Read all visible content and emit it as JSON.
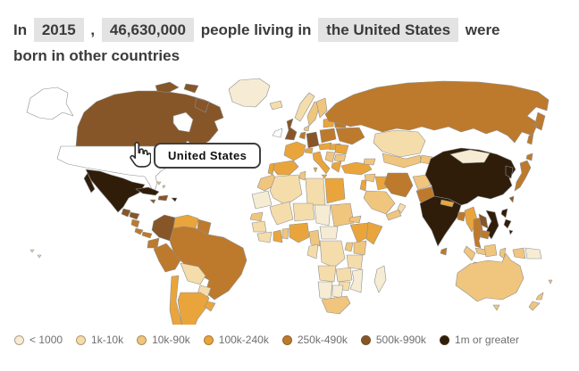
{
  "title": {
    "prefix": "In",
    "year": "2015",
    "separator": ",",
    "count": "46,630,000",
    "mid": "people living in",
    "place": "the United States",
    "suffix": "were",
    "line2": "born in other countries"
  },
  "tooltip": {
    "text": "United States"
  },
  "legend": {
    "items": [
      {
        "label": "< 1000",
        "color": "#f6ecd4"
      },
      {
        "label": "1k-10k",
        "color": "#f5dcab"
      },
      {
        "label": "10k-90k",
        "color": "#f0c57d"
      },
      {
        "label": "100k-240k",
        "color": "#e9a53c"
      },
      {
        "label": "250k-490k",
        "color": "#bd7a2c"
      },
      {
        "label": "500k-990k",
        "color": "#875628"
      },
      {
        "label": "1m or greater",
        "color": "#2f1d0a"
      }
    ]
  },
  "map": {
    "selected_country": "United States",
    "selected_fill": "#ffffff",
    "no_data_fill": "#ffffff",
    "border_color": "#8f8f8f",
    "regions": {
      "greenland": 0,
      "canada": 5,
      "arctic-island-1": 5,
      "arctic-island-2": 5,
      "baffin-island": 5,
      "yukon-island": 5,
      "alaska": "selected",
      "usa": "selected",
      "hudson-bay": "nodata",
      "mexico": 6,
      "guatemala": 5,
      "honduras": 5,
      "nicaragua": 4,
      "costa-rica": 4,
      "panama": 4,
      "cuba": 6,
      "jamaica": 5,
      "hispaniola": 5,
      "puerto-rico": 6,
      "bahamas-1": 2,
      "bahamas-2": 2,
      "colombia": 5,
      "venezuela": 3,
      "guyana": 4,
      "ecuador": 4,
      "peru": 4,
      "brazil": 4,
      "bolivia": 1,
      "paraguay": 1,
      "chile": 3,
      "argentina": 3,
      "uruguay": 3,
      "falklands": 0,
      "iceland": 1,
      "ireland": "nodata",
      "united-kingdom": 5,
      "norway": 1,
      "sweden": 2,
      "finland": 2,
      "denmark": 2,
      "france": 3,
      "spain": 3,
      "portugal": 3,
      "germany": 5,
      "benelux": 4,
      "switzerland": 3,
      "italy": 3,
      "sicily": 3,
      "sardinia": 3,
      "austria-czech": 3,
      "poland": 4,
      "hungary-slovakia": 3,
      "romania": 3,
      "balkans": 2,
      "greece": 3,
      "bulgaria": 2,
      "baltics": 3,
      "belarus": 4,
      "ukraine": 4,
      "russia": 4,
      "kazakhstan": 1,
      "uzbekistan-turkmenistan": 2,
      "kyrgyz-tajik": 2,
      "turkey": 3,
      "caucasus": 2,
      "syria": 2,
      "levant": 3,
      "iraq": 3,
      "iran": 4,
      "saudi-arabia": 2,
      "yemen": 2,
      "oman": 1,
      "afghanistan": 2,
      "pakistan": 4,
      "india": 6,
      "nepal": 3,
      "sri-lanka": 4,
      "bangladesh": 4,
      "china": 6,
      "mongolia": 0,
      "myanmar": 3,
      "thailand": 4,
      "laos": 5,
      "vietnam": 6,
      "cambodia": 4,
      "malaysia": 2,
      "korea": 6,
      "japan": 4,
      "taiwan": 5,
      "philippines-1": 6,
      "philippines-2": 6,
      "philippines-3": 6,
      "sumatra": 2,
      "java": 2,
      "borneo": 2,
      "sulawesi": 2,
      "west-new-guinea": 2,
      "papua-new-guinea": 0,
      "australia": 2,
      "tasmania": 2,
      "new-zealand-north": 2,
      "new-zealand-south": 2,
      "fiji": 2,
      "pacific-island-1": 1,
      "pacific-island-2": 1,
      "morocco": 2,
      "mauritania": 0,
      "algeria": 1,
      "tunisia": 2,
      "libya": 1,
      "egypt": 3,
      "mali": 1,
      "niger": 1,
      "chad": 0,
      "sudan": 2,
      "eritrea": 2,
      "senegal": 2,
      "guinea": 1,
      "ivory-coast": 1,
      "ghana": 3,
      "togo-benin": 2,
      "nigeria": 3,
      "cameroon": 2,
      "central-african-republic": 0,
      "ethiopia": 3,
      "somalia": 3,
      "kenya": 2,
      "uganda": 2,
      "dr-congo": 1,
      "gabon-congo": 1,
      "tanzania": 1,
      "angola": 1,
      "zambia": 1,
      "mozambique": 0,
      "zimbabwe": 1,
      "namibia": 0,
      "botswana": 0,
      "south-africa": 2,
      "madagascar": 0
    }
  }
}
